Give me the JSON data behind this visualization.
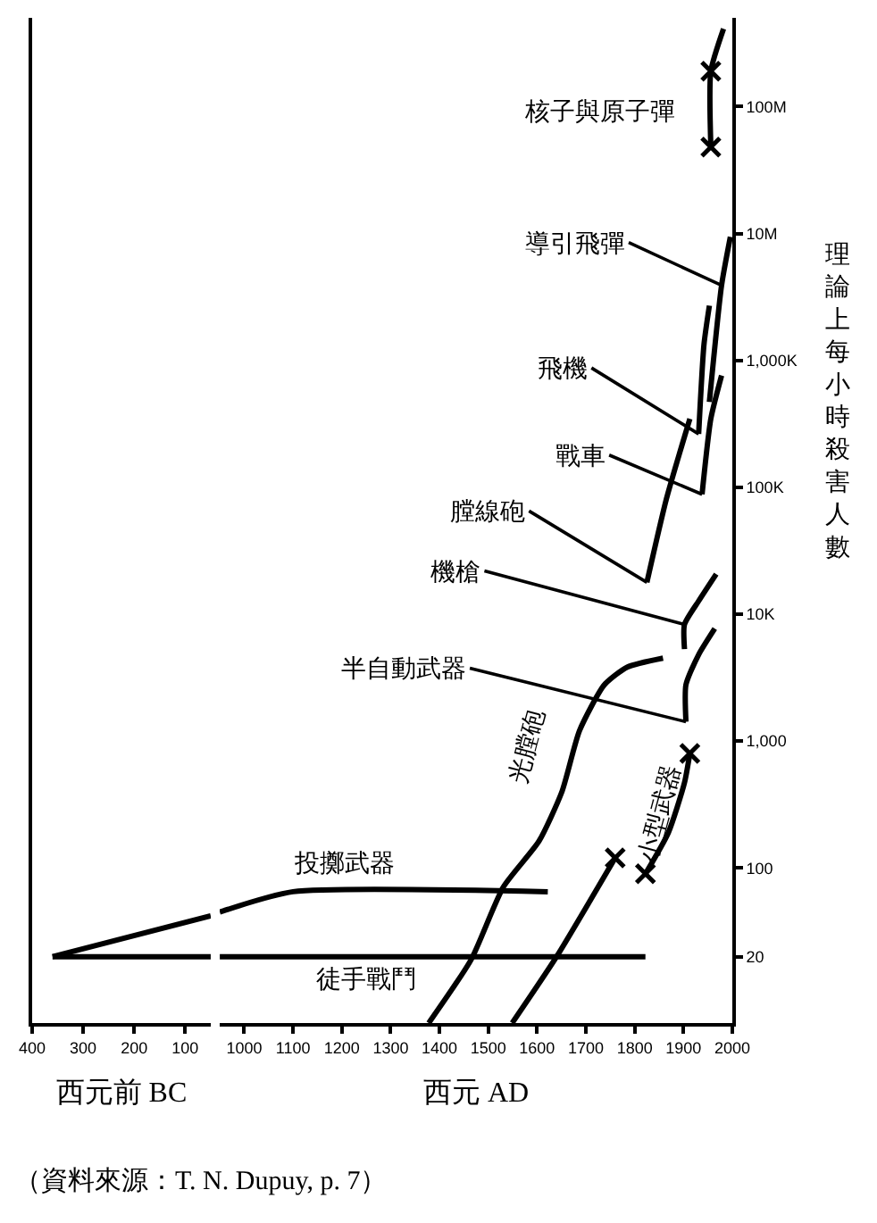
{
  "chart_data": [
    {
      "type": "line",
      "xlabel": "西元前 BC",
      "log": true,
      "grid": false,
      "marker": "none",
      "line_style": "solid",
      "tick_labels": "x",
      "xlim": [
        -400,
        -50
      ],
      "xticks": [
        {
          "value": -400,
          "label": "400"
        },
        {
          "value": -300,
          "label": "300"
        },
        {
          "value": -200,
          "label": "200"
        },
        {
          "value": -100,
          "label": "100"
        }
      ],
      "ylim": [
        6,
        500000000
      ],
      "series": [
        {
          "color": "#000000",
          "x": [
            -360,
            -50
          ],
          "values": [
            20,
            20
          ]
        },
        {
          "color": "#000000",
          "x": [
            -360,
            -50
          ],
          "values": [
            20,
            42
          ]
        }
      ]
    },
    {
      "type": "line",
      "xlabel": "西元 AD",
      "ylabel": "理論上每小時殺害人數",
      "log": true,
      "grid": false,
      "legend": false,
      "marker": "none",
      "line_style": "solid",
      "xlim": [
        950,
        2000
      ],
      "xticks": [
        1000,
        1100,
        1200,
        1300,
        1400,
        1500,
        1600,
        1700,
        1800,
        1900,
        2000
      ],
      "ylim": [
        6,
        500000000
      ],
      "yticks": [
        20,
        100,
        {
          "value": 1000,
          "label": "1,000"
        },
        {
          "value": 10000,
          "label": "10K"
        },
        {
          "value": 100000,
          "label": "100K"
        },
        {
          "value": 1000000,
          "label": "1,000K"
        },
        {
          "value": 10000000,
          "label": "10M"
        },
        {
          "value": 100000000,
          "label": "100M"
        }
      ],
      "annotations": [
        "（資料來源：T. N. Dupuy, p. 7）"
      ],
      "series": [
        {
          "name": "徒手戰鬥",
          "color": "#000000",
          "x": [
            950,
            1822
          ],
          "values": [
            20,
            20
          ]
        },
        {
          "name": "投擲武器",
          "color": "#000000",
          "x": [
            950,
            1100,
            1622
          ],
          "values": [
            45,
            65,
            65
          ]
        },
        {
          "name": "光膛砲",
          "color": "#000000",
          "x": [
            1378,
            1465,
            1531,
            1604,
            1651,
            1687,
            1738,
            1785,
            1858
          ],
          "values": [
            6,
            19,
            71,
            163,
            400,
            1210,
            2780,
            3830,
            4500
          ]
        },
        {
          "color": "#000000",
          "x": [
            1549,
            1640,
            1760
          ],
          "values": [
            6,
            20,
            120
          ]
        },
        {
          "name": "小型武器",
          "color": "#000000",
          "x": [
            1822,
            1869,
            1902,
            1913
          ],
          "values": [
            90,
            190,
            470,
            800
          ]
        },
        {
          "name": "半自動武器",
          "color": "#000000",
          "x": [
            1905,
            1905,
            1931,
            1964
          ],
          "values": [
            1420,
            2780,
            4800,
            7700
          ]
        },
        {
          "name": "機槍",
          "color": "#000000",
          "x": [
            1902,
            1902,
            1931,
            1967
          ],
          "values": [
            5300,
            8300,
            12700,
            20700
          ]
        },
        {
          "name": "膛線砲",
          "color": "#000000",
          "x": [
            1825,
            1865,
            1913
          ],
          "values": [
            17800,
            81000,
            347000
          ]
        },
        {
          "name": "戰車",
          "color": "#000000",
          "x": [
            1938,
            1956,
            1978
          ],
          "values": [
            88000,
            347000,
            760000
          ]
        },
        {
          "name": "飛機",
          "color": "#000000",
          "x": [
            1931,
            1942,
            1953
          ],
          "values": [
            263000,
            1340000,
            2700000
          ]
        },
        {
          "name": "導引飛彈",
          "color": "#000000",
          "x": [
            1953,
            1978,
            1996
          ],
          "values": [
            470000,
            3900000,
            9400000
          ]
        },
        {
          "name": "核子與原子彈",
          "color": "#000000",
          "x": [
            1956,
            1956,
            1982
          ],
          "values": [
            48000000,
            190000000,
            410000000
          ]
        },
        {
          "type": "scatter",
          "marker": "cross",
          "color": "#000000",
          "x": [
            1760,
            1822,
            1913,
            1956,
            1956
          ],
          "values": [
            120,
            90,
            800,
            48000000,
            190000000
          ]
        }
      ]
    }
  ]
}
